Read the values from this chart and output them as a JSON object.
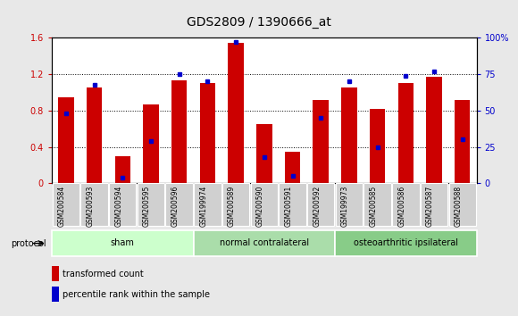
{
  "title": "GDS2809 / 1390666_at",
  "samples": [
    "GSM200584",
    "GSM200593",
    "GSM200594",
    "GSM200595",
    "GSM200596",
    "GSM199974",
    "GSM200589",
    "GSM200590",
    "GSM200591",
    "GSM200592",
    "GSM199973",
    "GSM200585",
    "GSM200586",
    "GSM200587",
    "GSM200588"
  ],
  "red_values": [
    0.95,
    1.05,
    0.3,
    0.87,
    1.13,
    1.1,
    1.55,
    0.65,
    0.35,
    0.92,
    1.05,
    0.82,
    1.1,
    1.17,
    0.92
  ],
  "blue_percentile": [
    48,
    68,
    4,
    29,
    75,
    70,
    97,
    18,
    5,
    45,
    70,
    25,
    74,
    77,
    30
  ],
  "groups": [
    {
      "label": "sham",
      "start": 0,
      "end": 5
    },
    {
      "label": "normal contralateral",
      "start": 5,
      "end": 10
    },
    {
      "label": "osteoarthritic ipsilateral",
      "start": 10,
      "end": 15
    }
  ],
  "group_colors": [
    "#ccffcc",
    "#aaddaa",
    "#88cc88"
  ],
  "ylim_left": [
    0,
    1.6
  ],
  "ylim_right": [
    0,
    100
  ],
  "yticks_left": [
    0,
    0.4,
    0.8,
    1.2,
    1.6
  ],
  "yticks_right": [
    0,
    25,
    50,
    75,
    100
  ],
  "bar_color": "#cc0000",
  "dot_color": "#0000cc",
  "bg_color": "#e8e8e8",
  "plot_bg": "#ffffff",
  "bar_width": 0.55,
  "title_fontsize": 10,
  "tick_fontsize": 7,
  "label_fontsize": 7
}
